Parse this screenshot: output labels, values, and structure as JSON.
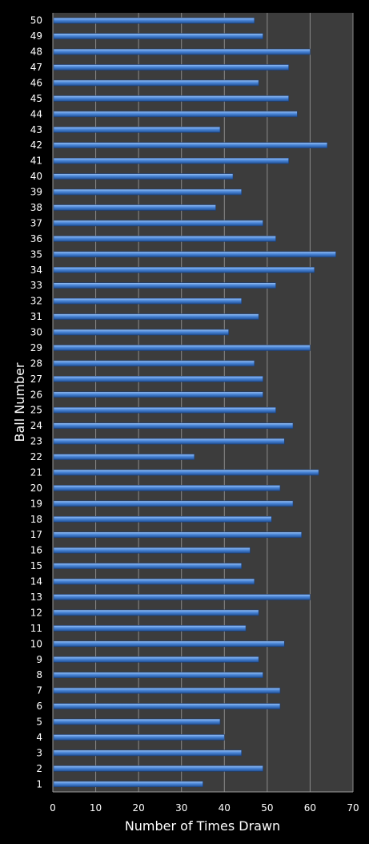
{
  "chart_data": {
    "type": "bar",
    "orientation": "horizontal",
    "xlabel": "Number of Times Drawn",
    "ylabel": "Ball Number",
    "xlim": [
      0,
      70
    ],
    "xticks": [
      "0",
      "10",
      "20",
      "30",
      "40",
      "50",
      "60",
      "70"
    ],
    "grid": "vertical",
    "colors": {
      "background": "#000000",
      "plot": "#3c3c3c",
      "bar": "#4a86d8",
      "grid": "#8a8a8a",
      "text": "#ffffff"
    },
    "categories": [
      "1",
      "2",
      "3",
      "4",
      "5",
      "6",
      "7",
      "8",
      "9",
      "10",
      "11",
      "12",
      "13",
      "14",
      "15",
      "16",
      "17",
      "18",
      "19",
      "20",
      "21",
      "22",
      "23",
      "24",
      "25",
      "26",
      "27",
      "28",
      "29",
      "30",
      "31",
      "32",
      "33",
      "34",
      "35",
      "36",
      "37",
      "38",
      "39",
      "40",
      "41",
      "42",
      "43",
      "44",
      "45",
      "46",
      "47",
      "48",
      "49",
      "50"
    ],
    "values": [
      35,
      49,
      44,
      40,
      39,
      53,
      53,
      49,
      48,
      54,
      45,
      48,
      60,
      47,
      44,
      46,
      58,
      51,
      56,
      53,
      62,
      33,
      54,
      56,
      52,
      49,
      49,
      47,
      60,
      41,
      48,
      44,
      52,
      61,
      66,
      52,
      49,
      38,
      44,
      42,
      55,
      64,
      39,
      57,
      55,
      48,
      55,
      60,
      49,
      47
    ]
  }
}
